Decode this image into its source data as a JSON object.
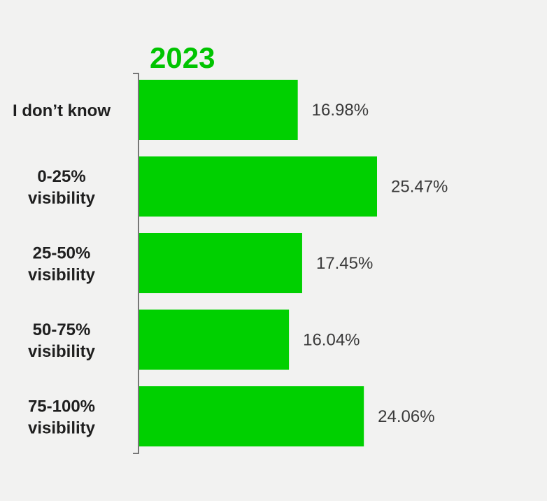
{
  "chart_data": {
    "type": "bar",
    "orientation": "horizontal",
    "title": "2023",
    "categories": [
      [
        "I don’t know"
      ],
      [
        "0-25%",
        "visibility"
      ],
      [
        "25-50%",
        "visibility"
      ],
      [
        "50-75%",
        "visibility"
      ],
      [
        "75-100%",
        "visibility"
      ]
    ],
    "values": [
      16.98,
      25.47,
      17.45,
      16.04,
      24.06
    ],
    "value_labels": [
      "16.98%",
      "25.47%",
      "17.45%",
      "16.04%",
      "24.06%"
    ],
    "xlim": [
      0,
      25.47
    ],
    "grid": false,
    "legend": "none",
    "colors": {
      "bar": "#00d000",
      "title": "#00c400",
      "axis": "#777777",
      "background": "#f2f2f1"
    }
  }
}
